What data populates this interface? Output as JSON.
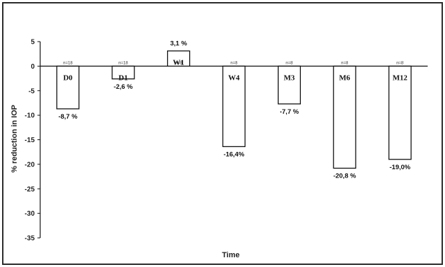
{
  "chart_data": {
    "type": "bar",
    "title": "",
    "xlabel": "Time",
    "ylabel": "% reduction in IOP",
    "ylim": [
      -35,
      5
    ],
    "yticks": [
      "5",
      "0",
      "-5",
      "-10",
      "-15",
      "-20",
      "-25",
      "-30",
      "-35"
    ],
    "grid": false,
    "legend": "none",
    "categories": [
      "D0",
      "D1",
      "W1",
      "W4",
      "M3",
      "M6",
      "M12"
    ],
    "values": [
      -8.7,
      -2.6,
      3.1,
      -16.4,
      -7.7,
      -20.8,
      -19.0
    ],
    "value_labels": [
      "-8,7 %",
      "-2,6 %",
      "3,1 %",
      "-16,4%",
      "-7,7 %",
      "-20,8 %",
      "-19,0%"
    ],
    "n_labels": [
      "n=18",
      "n=18",
      "n=8",
      "n=8",
      "n=8",
      "n=8",
      "n=8"
    ],
    "colors": {
      "bar_fill": "#ffffff",
      "bar_stroke": "#111111",
      "axis": "#111111"
    }
  }
}
